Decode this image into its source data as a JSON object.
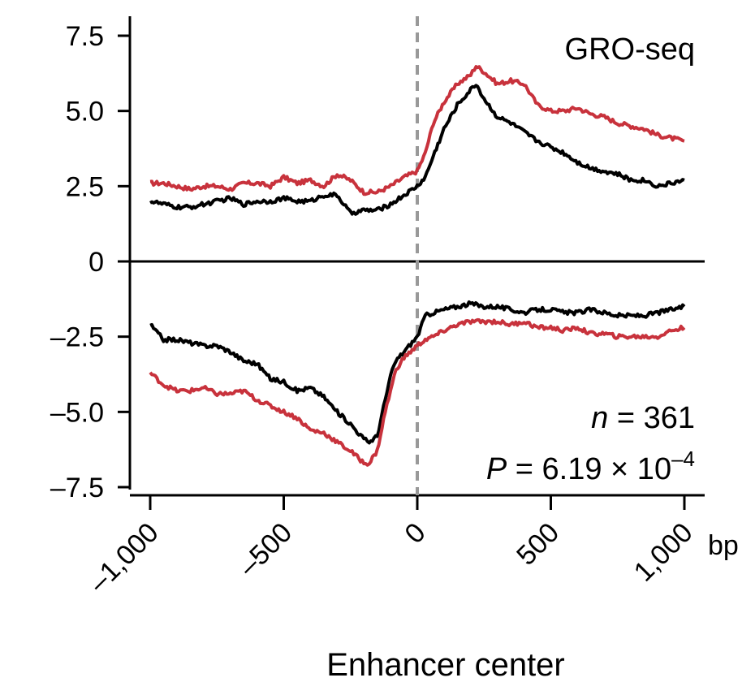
{
  "chart_data": {
    "type": "line",
    "title": "",
    "xlabel": "Enhancer center",
    "x_unit": "bp",
    "ylabel": "",
    "xlim": [
      -1000,
      1000
    ],
    "ylim": [
      -7.5,
      7.5
    ],
    "x_ticks": [
      {
        "value": -1000,
        "label": "–1,000"
      },
      {
        "value": -500,
        "label": "–500"
      },
      {
        "value": 0,
        "label": "0"
      },
      {
        "value": 500,
        "label": "500"
      },
      {
        "value": 1000,
        "label": "1,000"
      }
    ],
    "y_ticks": [
      {
        "value": 7.5,
        "label": "7.5"
      },
      {
        "value": 5.0,
        "label": "5.0"
      },
      {
        "value": 2.5,
        "label": "2.5"
      },
      {
        "value": 0,
        "label": "0"
      },
      {
        "value": -2.5,
        "label": "–2.5"
      },
      {
        "value": -5.0,
        "label": "–5.0"
      },
      {
        "value": -7.5,
        "label": "–7.5"
      }
    ],
    "panel_label": "GRO-seq",
    "annotations": {
      "n_prefix": "n",
      "n_text": " = 361",
      "p_prefix": "P",
      "p_text": " = 6.19 × 10",
      "p_exponent": "–4"
    },
    "center_line": {
      "x": 0,
      "style": "dashed",
      "color": "#999999"
    },
    "colors": {
      "red": "#c8323c",
      "black": "#000000"
    },
    "series": [
      {
        "color": "#c8323c",
        "x": [
          -1000,
          -950,
          -900,
          -850,
          -800,
          -750,
          -700,
          -650,
          -600,
          -550,
          -500,
          -450,
          -400,
          -350,
          -300,
          -250,
          -200,
          -150,
          -100,
          -50,
          0,
          30,
          60,
          100,
          150,
          200,
          220,
          250,
          300,
          350,
          400,
          450,
          500,
          550,
          600,
          650,
          700,
          750,
          800,
          850,
          900,
          950,
          1000
        ],
        "values": [
          2.6,
          2.6,
          2.5,
          2.4,
          2.5,
          2.5,
          2.4,
          2.6,
          2.6,
          2.5,
          2.8,
          2.6,
          2.7,
          2.5,
          2.9,
          2.7,
          2.3,
          2.3,
          2.5,
          2.8,
          3.0,
          3.6,
          4.6,
          5.3,
          5.9,
          6.2,
          6.5,
          6.3,
          5.9,
          6.0,
          5.9,
          5.2,
          5.0,
          5.0,
          5.1,
          4.9,
          4.8,
          4.6,
          4.5,
          4.4,
          4.2,
          4.1,
          4.0
        ]
      },
      {
        "color": "#000000",
        "x": [
          -1000,
          -950,
          -900,
          -850,
          -800,
          -750,
          -700,
          -650,
          -600,
          -550,
          -500,
          -450,
          -400,
          -350,
          -300,
          -250,
          -200,
          -150,
          -100,
          -50,
          0,
          30,
          60,
          100,
          150,
          200,
          220,
          250,
          300,
          350,
          400,
          450,
          500,
          550,
          600,
          650,
          700,
          750,
          800,
          850,
          900,
          950,
          1000
        ],
        "values": [
          2.0,
          1.9,
          1.8,
          1.8,
          1.9,
          2.0,
          2.1,
          1.9,
          2.0,
          2.0,
          2.1,
          2.0,
          2.0,
          2.2,
          2.2,
          1.6,
          1.7,
          1.7,
          1.9,
          2.2,
          2.5,
          2.8,
          3.5,
          4.4,
          5.2,
          5.7,
          5.9,
          5.4,
          4.8,
          4.6,
          4.3,
          4.0,
          3.8,
          3.6,
          3.3,
          3.1,
          3.0,
          2.9,
          2.7,
          2.7,
          2.5,
          2.6,
          2.7
        ]
      },
      {
        "color": "#000000",
        "x": [
          -1000,
          -950,
          -900,
          -850,
          -800,
          -750,
          -700,
          -650,
          -600,
          -550,
          -500,
          -450,
          -400,
          -350,
          -300,
          -250,
          -200,
          -180,
          -150,
          -120,
          -100,
          -80,
          -50,
          0,
          30,
          60,
          100,
          150,
          200,
          250,
          300,
          350,
          400,
          450,
          500,
          550,
          600,
          650,
          700,
          750,
          800,
          850,
          900,
          950,
          1000
        ],
        "values": [
          -2.1,
          -2.6,
          -2.6,
          -2.7,
          -2.8,
          -2.8,
          -3.0,
          -3.3,
          -3.4,
          -3.9,
          -4.0,
          -4.3,
          -4.2,
          -4.5,
          -5.0,
          -5.4,
          -5.9,
          -6.0,
          -5.8,
          -4.6,
          -3.8,
          -3.3,
          -3.0,
          -2.5,
          -1.8,
          -1.7,
          -1.6,
          -1.5,
          -1.4,
          -1.5,
          -1.5,
          -1.6,
          -1.7,
          -1.6,
          -1.6,
          -1.7,
          -1.7,
          -1.6,
          -1.7,
          -1.8,
          -1.8,
          -1.8,
          -1.7,
          -1.6,
          -1.5
        ]
      },
      {
        "color": "#c8323c",
        "x": [
          -1000,
          -950,
          -900,
          -850,
          -800,
          -750,
          -700,
          -650,
          -600,
          -550,
          -500,
          -450,
          -400,
          -350,
          -300,
          -250,
          -200,
          -180,
          -150,
          -120,
          -100,
          -80,
          -50,
          0,
          30,
          60,
          100,
          150,
          200,
          250,
          300,
          350,
          400,
          450,
          500,
          550,
          600,
          650,
          700,
          750,
          800,
          850,
          900,
          950,
          1000
        ],
        "values": [
          -3.7,
          -4.1,
          -4.3,
          -4.3,
          -4.2,
          -4.4,
          -4.4,
          -4.3,
          -4.6,
          -4.8,
          -5.0,
          -5.2,
          -5.6,
          -5.7,
          -6.0,
          -6.3,
          -6.7,
          -6.7,
          -6.3,
          -5.0,
          -4.3,
          -3.6,
          -3.2,
          -2.8,
          -2.6,
          -2.5,
          -2.3,
          -2.1,
          -2.0,
          -2.0,
          -2.0,
          -2.1,
          -2.0,
          -2.2,
          -2.2,
          -2.3,
          -2.2,
          -2.4,
          -2.4,
          -2.5,
          -2.5,
          -2.5,
          -2.5,
          -2.3,
          -2.2
        ]
      }
    ]
  }
}
